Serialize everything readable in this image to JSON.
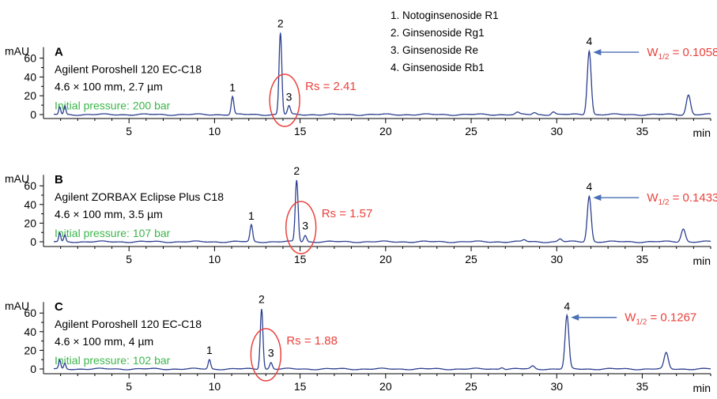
{
  "legend": {
    "items": [
      "1. Notoginsenoside R1",
      "2. Ginsenoside Rg1",
      "3. Ginsenoside Re",
      "4. Ginsenoside Rb1"
    ]
  },
  "colors": {
    "trace": "#2b3f8f",
    "annotation_red": "#e8423c",
    "pressure_green": "#3cb64a",
    "arrow": "#4a6fb5",
    "axis": "#000000"
  },
  "chart_data": [
    {
      "type": "line",
      "panel_letter": "A",
      "column": "Agilent Poroshell 120 EC-C18",
      "dimensions": "4.6 × 100 mm, 2.7 µm",
      "pressure": "Initial pressure: 200 bar",
      "ylabel": "mAU",
      "xlabel": "min",
      "xlim": [
        0,
        39
      ],
      "ylim": [
        -4,
        88
      ],
      "x_ticks": [
        5,
        10,
        15,
        20,
        25,
        30,
        35
      ],
      "y_ticks": [
        0,
        20,
        40,
        60
      ],
      "peaks": [
        {
          "label": "",
          "t": 0.95,
          "h": 8
        },
        {
          "label": "",
          "t": 1.25,
          "h": 9
        },
        {
          "label": "1",
          "t": 11.05,
          "h": 19
        },
        {
          "label": "2",
          "t": 13.85,
          "h": 87
        },
        {
          "label": "3",
          "t": 14.35,
          "h": 9
        },
        {
          "label": "",
          "t": 27.7,
          "h": 2
        },
        {
          "label": "",
          "t": 28.7,
          "h": 2
        },
        {
          "label": "",
          "t": 29.8,
          "h": 3
        },
        {
          "label": "4",
          "t": 31.9,
          "h": 68
        },
        {
          "label": "",
          "t": 37.7,
          "h": 21
        }
      ],
      "resolution": {
        "label": "Rs = 2.41",
        "t": 14.1
      },
      "width": {
        "label_main": "W",
        "label_sub": "1/2",
        "label_value": " = 0.1058",
        "t": 31.9
      }
    },
    {
      "type": "line",
      "panel_letter": "B",
      "column": "Agilent ZORBAX Eclipse Plus C18",
      "dimensions": "4.6 × 100 mm, 3.5 µm",
      "pressure": "Initial pressure: 107 bar",
      "ylabel": "mAU",
      "xlabel": "min",
      "xlim": [
        0,
        39
      ],
      "ylim": [
        -4,
        80
      ],
      "x_ticks": [
        5,
        10,
        15,
        20,
        25,
        30,
        35
      ],
      "y_ticks": [
        0,
        20,
        40,
        60
      ],
      "peaks": [
        {
          "label": "",
          "t": 0.95,
          "h": 9
        },
        {
          "label": "",
          "t": 1.25,
          "h": 7
        },
        {
          "label": "1",
          "t": 12.15,
          "h": 18
        },
        {
          "label": "2",
          "t": 14.8,
          "h": 66
        },
        {
          "label": "3",
          "t": 15.3,
          "h": 7
        },
        {
          "label": "",
          "t": 28.1,
          "h": 2
        },
        {
          "label": "",
          "t": 30.2,
          "h": 3
        },
        {
          "label": "4",
          "t": 31.9,
          "h": 49
        },
        {
          "label": "",
          "t": 37.4,
          "h": 14
        }
      ],
      "resolution": {
        "label": "Rs = 1.57",
        "t": 15.05
      },
      "width": {
        "label_main": "W",
        "label_sub": "1/2",
        "label_value": " = 0.1433",
        "t": 31.9
      }
    },
    {
      "type": "line",
      "panel_letter": "C",
      "column": "Agilent Poroshell 120 EC-C18",
      "dimensions": "4.6 × 100 mm, 4 µm",
      "pressure": "Initial pressure: 102 bar",
      "ylabel": "mAU",
      "xlabel": "min",
      "xlim": [
        0,
        39
      ],
      "ylim": [
        -4,
        80
      ],
      "x_ticks": [
        5,
        10,
        15,
        20,
        25,
        30,
        35
      ],
      "y_ticks": [
        0,
        20,
        40,
        60
      ],
      "peaks": [
        {
          "label": "",
          "t": 0.95,
          "h": 9
        },
        {
          "label": "",
          "t": 1.25,
          "h": 6
        },
        {
          "label": "1",
          "t": 9.7,
          "h": 10
        },
        {
          "label": "2",
          "t": 12.75,
          "h": 65
        },
        {
          "label": "3",
          "t": 13.3,
          "h": 7
        },
        {
          "label": "",
          "t": 26.8,
          "h": 2
        },
        {
          "label": "",
          "t": 28.6,
          "h": 3
        },
        {
          "label": "4",
          "t": 30.6,
          "h": 57
        },
        {
          "label": "",
          "t": 36.4,
          "h": 17
        }
      ],
      "resolution": {
        "label": "Rs = 1.88",
        "t": 13.0
      },
      "width": {
        "label_main": "W",
        "label_sub": "1/2",
        "label_value": " = 0.1267",
        "t": 30.6
      }
    }
  ]
}
